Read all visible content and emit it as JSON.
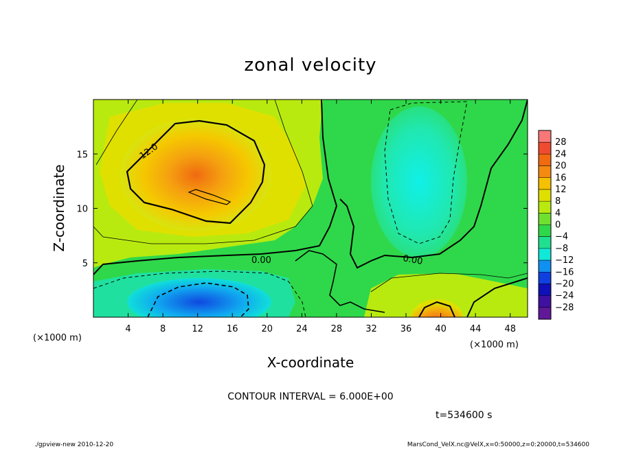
{
  "chart_data": {
    "type": "heatmap",
    "title": "zonal velocity",
    "xlabel": "X-coordinate",
    "ylabel": "Z-coordinate",
    "x_unit_left": "(×1000 m)",
    "x_unit_right": "(×1000 m)",
    "xlim": [
      0,
      50
    ],
    "ylim": [
      0,
      20
    ],
    "x_ticks": [
      "4",
      "8",
      "12",
      "16",
      "20",
      "24",
      "28",
      "32",
      "36",
      "40",
      "44",
      "48"
    ],
    "y_ticks": [
      "5",
      "10",
      "15"
    ],
    "colorbar_levels": [
      "28",
      "24",
      "20",
      "16",
      "12",
      "8",
      "4",
      "0",
      "−4",
      "−8",
      "−12",
      "−16",
      "−20",
      "−24",
      "−28"
    ],
    "colorbar_colors": [
      "#f87878",
      "#f04a30",
      "#f06a10",
      "#f58a10",
      "#f5c000",
      "#e0e000",
      "#b8ea10",
      "#70e030",
      "#2fd84a",
      "#20e090",
      "#10e8d8",
      "#1090f0",
      "#1040e0",
      "#1010b8",
      "#4010a0",
      "#601898"
    ],
    "contour_interval_text": "CONTOUR INTERVAL = 6.000E+00",
    "time_text": "t=534600 s",
    "contour_labels": [
      "12.0",
      "0.00",
      "0.00"
    ],
    "regions": [
      {
        "name": "positive core",
        "x": 12.5,
        "z": 12.5,
        "value": 18
      },
      {
        "name": "positive surface jet",
        "x": 39,
        "z": 0.5,
        "value": 20
      },
      {
        "name": "negative core lower left",
        "x": 12,
        "z": 1.5,
        "value": -14
      },
      {
        "name": "negative region upper right",
        "x": 38,
        "z": 11,
        "value": -10
      }
    ]
  },
  "footer": {
    "left": "./gpview-new   2010-12-20",
    "right": "MarsCond_VelX.nc@VelX,x=0:50000,z=0:20000,t=534600"
  }
}
